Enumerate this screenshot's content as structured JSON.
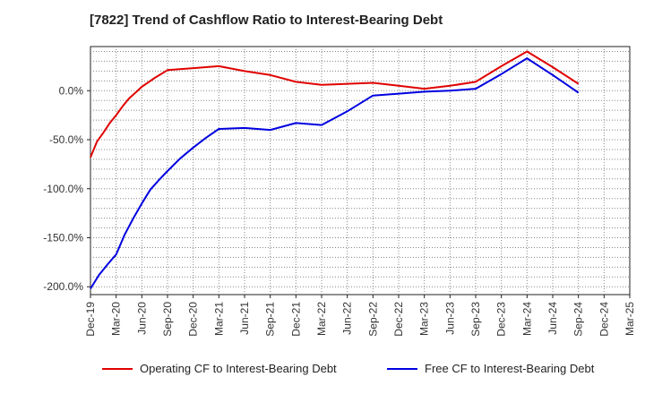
{
  "chart_data": {
    "type": "line",
    "title": "[7822]  Trend of Cashflow Ratio to Interest-Bearing Debt",
    "xlabel": "",
    "ylabel": "",
    "x_tick_labels": [
      "Dec-19",
      "Mar-20",
      "Jun-20",
      "Sep-20",
      "Dec-20",
      "Mar-21",
      "Jun-21",
      "Sep-21",
      "Dec-21",
      "Mar-22",
      "Jun-22",
      "Sep-22",
      "Dec-22",
      "Mar-23",
      "Jun-23",
      "Sep-23",
      "Dec-23",
      "Mar-24",
      "Jun-24",
      "Sep-24",
      "Dec-24",
      "Mar-25"
    ],
    "y_tick_labels": [
      "0.0%",
      "-50.0%",
      "-100.0%",
      "-150.0%",
      "-200.0%"
    ],
    "y_ticks": [
      0,
      -50,
      -100,
      -150,
      -200
    ],
    "ylim": [
      -208,
      45
    ],
    "grid": true,
    "legend_position": "bottom",
    "series": [
      {
        "name": "Operating CF to Interest-Bearing Debt",
        "color": "#e00000",
        "points": [
          [
            0,
            -68
          ],
          [
            0.25,
            -52
          ],
          [
            0.5,
            -43
          ],
          [
            0.75,
            -33
          ],
          [
            1,
            -25
          ],
          [
            1.25,
            -16
          ],
          [
            1.5,
            -8
          ],
          [
            1.75,
            -2
          ],
          [
            2,
            4
          ],
          [
            2.5,
            13
          ],
          [
            3,
            21
          ],
          [
            4,
            23
          ],
          [
            5,
            25
          ],
          [
            6,
            20
          ],
          [
            7,
            16
          ],
          [
            8,
            9
          ],
          [
            9,
            6
          ],
          [
            10,
            7
          ],
          [
            11,
            8
          ],
          [
            12,
            5
          ],
          [
            13,
            2
          ],
          [
            14,
            5
          ],
          [
            15,
            9
          ],
          [
            16,
            25
          ],
          [
            17,
            40
          ],
          [
            18,
            24
          ],
          [
            19,
            7
          ]
        ]
      },
      {
        "name": "Free CF to Interest-Bearing Debt",
        "color": "#0000e0",
        "points": [
          [
            0,
            -202
          ],
          [
            0.33,
            -188
          ],
          [
            0.67,
            -177
          ],
          [
            1,
            -167
          ],
          [
            1.33,
            -147
          ],
          [
            1.67,
            -130
          ],
          [
            2,
            -115
          ],
          [
            2.33,
            -101
          ],
          [
            2.67,
            -91
          ],
          [
            3,
            -82
          ],
          [
            3.5,
            -69
          ],
          [
            4,
            -58
          ],
          [
            4.5,
            -48
          ],
          [
            5,
            -39
          ],
          [
            6,
            -38
          ],
          [
            7,
            -40
          ],
          [
            8,
            -33
          ],
          [
            9,
            -35
          ],
          [
            10,
            -21
          ],
          [
            11,
            -5
          ],
          [
            12,
            -3
          ],
          [
            13,
            -1
          ],
          [
            14,
            0
          ],
          [
            15,
            2
          ],
          [
            16,
            17
          ],
          [
            17,
            33
          ],
          [
            18,
            16
          ],
          [
            19,
            -2
          ]
        ]
      }
    ]
  }
}
